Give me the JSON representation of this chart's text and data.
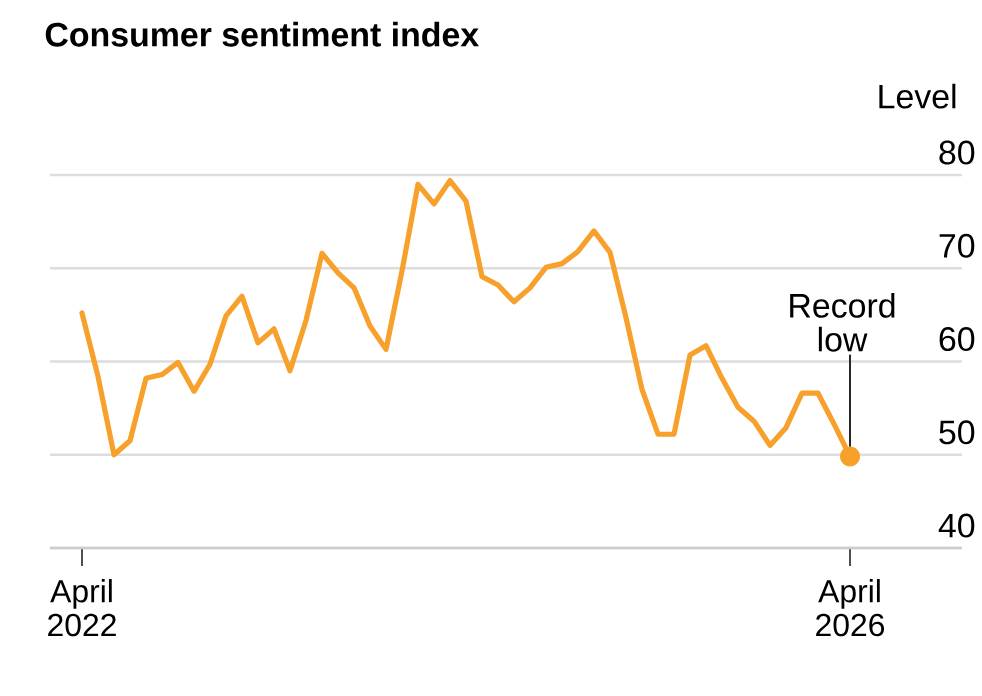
{
  "chart_data": {
    "type": "line",
    "title": "Consumer sentiment index",
    "ylabel": "Level",
    "x": [
      "2022-04",
      "2022-05",
      "2022-06",
      "2022-07",
      "2022-08",
      "2022-09",
      "2022-10",
      "2022-11",
      "2022-12",
      "2023-01",
      "2023-02",
      "2023-03",
      "2023-04",
      "2023-05",
      "2023-06",
      "2023-07",
      "2023-08",
      "2023-09",
      "2023-10",
      "2023-11",
      "2023-12",
      "2024-01",
      "2024-02",
      "2024-03",
      "2024-04",
      "2024-05",
      "2024-06",
      "2024-07",
      "2024-08",
      "2024-09",
      "2024-10",
      "2024-11",
      "2024-12",
      "2025-01",
      "2025-02",
      "2025-03",
      "2025-04",
      "2025-05",
      "2025-06",
      "2025-07",
      "2025-08",
      "2025-09",
      "2025-10",
      "2025-11",
      "2025-12",
      "2026-01",
      "2026-02",
      "2026-03",
      "2026-04"
    ],
    "series": [
      {
        "color": "#f7a02c",
        "values": [
          65.2,
          58.4,
          50.0,
          51.5,
          58.2,
          58.6,
          59.9,
          56.8,
          59.7,
          64.9,
          67.0,
          62.0,
          63.5,
          59.0,
          64.4,
          71.6,
          69.5,
          67.9,
          63.8,
          61.3,
          69.7,
          79.0,
          76.9,
          79.4,
          77.2,
          69.1,
          68.2,
          66.4,
          67.9,
          70.1,
          70.5,
          71.8,
          74.0,
          71.7,
          64.7,
          57.0,
          52.2,
          52.2,
          60.7,
          61.7,
          58.2,
          55.1,
          53.6,
          51.0,
          52.9,
          56.6,
          56.6,
          53.3,
          49.8
        ]
      }
    ],
    "xlim": [
      "2022-02",
      "2026-11"
    ],
    "xticks": [
      {
        "value": "2022-04",
        "label": "April 2022"
      },
      {
        "value": "2026-04",
        "label": "April 2026"
      }
    ],
    "ylim": [
      40,
      80
    ],
    "yticks": [
      40,
      50,
      60,
      70,
      80
    ],
    "grid": "y",
    "annotations": [
      {
        "text": "Record low",
        "x": "2026-04",
        "y": 49.8
      }
    ]
  }
}
